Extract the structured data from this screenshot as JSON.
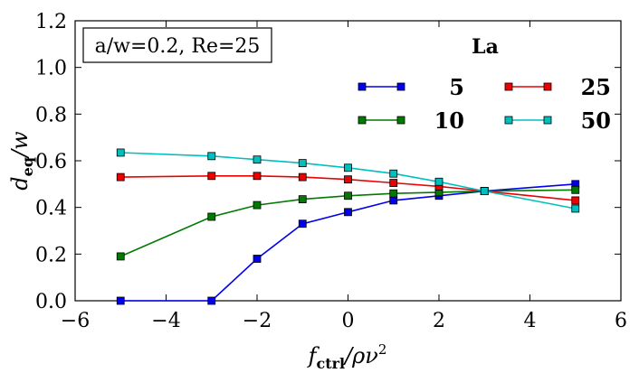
{
  "chart_data": {
    "type": "line",
    "xlabel": "f_ctrl/ρν²",
    "ylabel": "d_eq/w",
    "xlim": [
      -6,
      6
    ],
    "ylim": [
      0,
      1.2
    ],
    "x_ticks": [
      -6,
      -4,
      -2,
      0,
      2,
      4,
      6
    ],
    "y_ticks": [
      0.0,
      0.2,
      0.4,
      0.6,
      0.8,
      1.0,
      1.2
    ],
    "x_tick_labels": [
      "−6",
      "−4",
      "−2",
      "0",
      "2",
      "4",
      "6"
    ],
    "y_tick_labels": [
      "0.0",
      "0.2",
      "0.4",
      "0.6",
      "0.8",
      "1.0",
      "1.2"
    ],
    "annotation": "a/w=0.2, Re=25",
    "legend_title": "La",
    "legend_position": "top-right",
    "x": [
      -5,
      -3,
      -2,
      -1,
      0,
      1,
      2,
      3,
      5
    ],
    "series": [
      {
        "name": "5",
        "color": "#0000ee",
        "values": [
          0.0,
          0.0,
          0.18,
          0.33,
          0.38,
          0.43,
          0.45,
          0.47,
          0.5
        ]
      },
      {
        "name": "10",
        "color": "#007a00",
        "values": [
          0.19,
          0.36,
          0.41,
          0.435,
          0.45,
          0.46,
          0.465,
          0.47,
          0.475
        ]
      },
      {
        "name": "25",
        "color": "#ee0000",
        "values": [
          0.53,
          0.535,
          0.535,
          0.53,
          0.52,
          0.505,
          0.49,
          0.47,
          0.43
        ]
      },
      {
        "name": "50",
        "color": "#00bfbf",
        "values": [
          0.635,
          0.62,
          0.605,
          0.59,
          0.57,
          0.545,
          0.51,
          0.47,
          0.395
        ]
      }
    ]
  }
}
